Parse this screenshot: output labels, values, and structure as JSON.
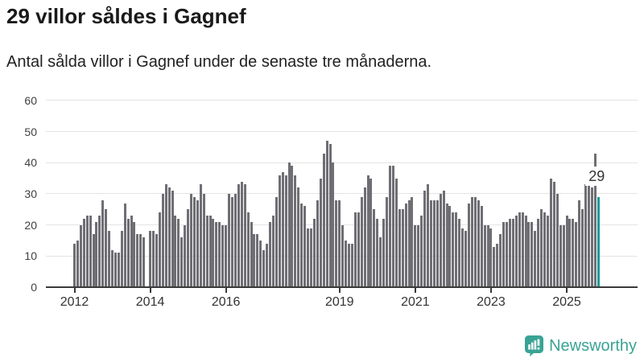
{
  "header": {
    "title": "29 villor såldes i Gagnef",
    "subtitle": "Antal sålda villor i Gagnef under de senaste tre månaderna."
  },
  "chart_data": {
    "type": "bar",
    "title": "29 villor såldes i Gagnef",
    "subtitle": "Antal sålda villor i Gagnef under de senaste tre månaderna.",
    "xlabel": "",
    "ylabel": "",
    "ylim": [
      0,
      60
    ],
    "yticks": [
      0,
      10,
      20,
      30,
      40,
      50,
      60
    ],
    "grid": "horizontal",
    "start_month": "2012-01",
    "frequency": "monthly-rolling-3-month-sum",
    "xtick_labels": [
      "2012",
      "2014",
      "2016",
      "2019",
      "2021",
      "2023",
      "2025"
    ],
    "xtick_month_index": [
      0,
      24,
      48,
      84,
      108,
      132,
      156
    ],
    "values": [
      14,
      15,
      20,
      22,
      23,
      23,
      17,
      21,
      23,
      28,
      25,
      18,
      12,
      11,
      11,
      18,
      27,
      22,
      23,
      21,
      17,
      17,
      16,
      0,
      18,
      18,
      17,
      24,
      30,
      33,
      32,
      31,
      23,
      22,
      16,
      20,
      25,
      30,
      29,
      28,
      33,
      30,
      23,
      23,
      22,
      21,
      21,
      20,
      20,
      30,
      29,
      30,
      33,
      34,
      33,
      24,
      21,
      17,
      17,
      15,
      12,
      14,
      21,
      23,
      29,
      36,
      37,
      36,
      40,
      39,
      36,
      32,
      27,
      26,
      19,
      19,
      22,
      28,
      35,
      43,
      47,
      46,
      40,
      28,
      28,
      20,
      15,
      14,
      14,
      24,
      24,
      29,
      32,
      36,
      35,
      25,
      22,
      16,
      22,
      29,
      39,
      39,
      35,
      25,
      25,
      27,
      28,
      29,
      20,
      20,
      23,
      31,
      33,
      28,
      28,
      28,
      30,
      31,
      27,
      26,
      24,
      24,
      22,
      19,
      18,
      27,
      29,
      29,
      28,
      26,
      20,
      20,
      19,
      13,
      14,
      17,
      21,
      21,
      22,
      22,
      23,
      24,
      24,
      23,
      21,
      21,
      18,
      22,
      25,
      24,
      23,
      35,
      34,
      30,
      20,
      20,
      23,
      22,
      22,
      21,
      28,
      25,
      33,
      33,
      32,
      43,
      29
    ],
    "highlight_last_bar": true,
    "bar_color": "#6f6e74",
    "highlight_color": "#19999b",
    "annotation": {
      "text": "29",
      "value": 29,
      "bar_index_from_end": 1
    }
  },
  "footer": {
    "brand": "Newsworthy",
    "brand_color": "#3aa394",
    "logo_icon": "newsworthy-bubble-chart-icon"
  }
}
